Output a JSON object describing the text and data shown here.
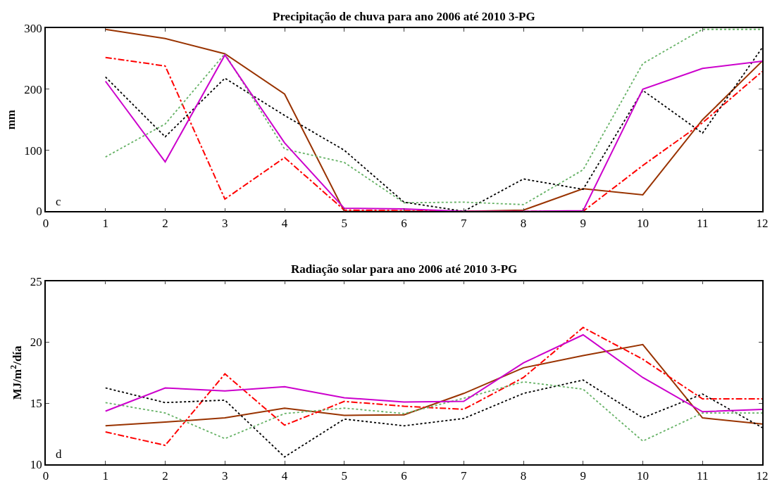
{
  "chart_data": [
    {
      "type": "line",
      "title": "Precipitação de chuva para ano 2006 até 2010 3-PG",
      "ylabel": "mm",
      "annotations": [
        "c"
      ],
      "x": [
        1,
        2,
        3,
        4,
        5,
        6,
        7,
        8,
        9,
        10,
        11,
        12
      ],
      "xlim": [
        0,
        12
      ],
      "xticks": [
        0,
        1,
        2,
        3,
        4,
        5,
        6,
        7,
        8,
        9,
        10,
        11,
        12
      ],
      "ylim": [
        0,
        300
      ],
      "yticks": [
        0,
        100,
        200,
        300
      ],
      "marker": "none",
      "series": [
        {
          "color": "#993300",
          "line_style": "solid",
          "values": [
            298,
            283,
            258,
            192,
            0,
            0,
            0,
            2,
            37,
            27,
            150,
            246
          ]
        },
        {
          "color": "#ff0000",
          "line_style": "dashed",
          "values": [
            252,
            238,
            20,
            88,
            2,
            1,
            0,
            0,
            0,
            75,
            145,
            229
          ]
        },
        {
          "color": "#000000",
          "line_style": "dotted",
          "values": [
            220,
            122,
            218,
            157,
            100,
            15,
            0,
            53,
            36,
            198,
            128,
            268
          ]
        },
        {
          "color": "#66b266",
          "line_style": "dotted",
          "values": [
            89,
            143,
            258,
            102,
            80,
            14,
            15,
            11,
            68,
            242,
            298,
            298
          ]
        },
        {
          "color": "#cc00cc",
          "line_style": "solid",
          "values": [
            213,
            81,
            256,
            112,
            5,
            4,
            0,
            0,
            1,
            200,
            234,
            246
          ]
        }
      ]
    },
    {
      "type": "line",
      "title": "Radiação solar para ano 2006 até 2010 3-PG",
      "ylabel": "MJ/m$^{2}$/día",
      "annotations": [
        "d"
      ],
      "x": [
        1,
        2,
        3,
        4,
        5,
        6,
        7,
        8,
        9,
        10,
        11,
        12
      ],
      "xlim": [
        0,
        12
      ],
      "xticks": [
        0,
        1,
        2,
        3,
        4,
        5,
        6,
        7,
        8,
        9,
        10,
        11,
        12
      ],
      "ylim": [
        10,
        25
      ],
      "yticks": [
        10,
        15,
        20,
        25
      ],
      "marker": "none",
      "series": [
        {
          "color": "#993300",
          "line_style": "solid",
          "values": [
            13.15,
            13.45,
            13.8,
            14.6,
            14.0,
            14.05,
            15.8,
            17.9,
            18.9,
            19.8,
            13.8,
            13.3
          ]
        },
        {
          "color": "#ff0000",
          "line_style": "dashed",
          "values": [
            12.65,
            11.55,
            17.4,
            13.2,
            15.15,
            14.75,
            14.5,
            17.1,
            21.2,
            18.6,
            15.35,
            15.35
          ]
        },
        {
          "color": "#000000",
          "line_style": "dotted",
          "values": [
            16.25,
            15.05,
            15.25,
            10.6,
            13.7,
            13.15,
            13.75,
            15.8,
            16.9,
            13.8,
            15.75,
            13.0
          ]
        },
        {
          "color": "#66b266",
          "line_style": "dotted",
          "values": [
            15.05,
            14.2,
            12.1,
            14.15,
            14.6,
            14.15,
            15.4,
            16.75,
            16.15,
            11.9,
            14.2,
            14.2
          ]
        },
        {
          "color": "#cc00cc",
          "line_style": "solid",
          "values": [
            14.35,
            16.25,
            16.0,
            16.35,
            15.45,
            15.1,
            15.15,
            18.3,
            20.6,
            17.1,
            14.3,
            14.5
          ]
        }
      ]
    }
  ]
}
